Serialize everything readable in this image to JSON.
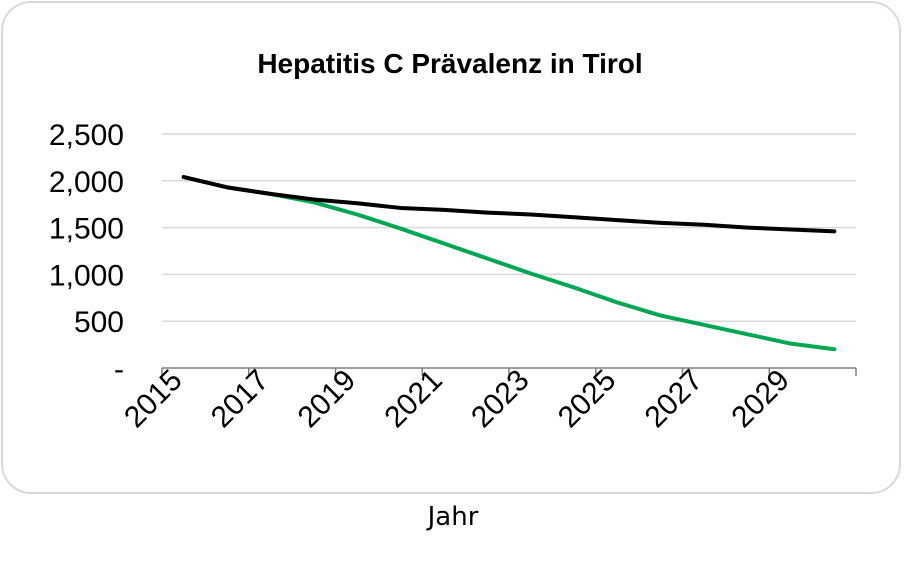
{
  "chart_data": {
    "type": "line",
    "title": "Hepatitis C Prävalenz in Tirol",
    "xlabel": "Jahr",
    "ylabel": "",
    "xlim": [
      2014.5,
      2030.5
    ],
    "ylim": [
      0,
      2500
    ],
    "x_ticks": [
      "2015",
      "2017",
      "2019",
      "2021",
      "2023",
      "2025",
      "2027",
      "2029"
    ],
    "y_ticks": [
      {
        "value": 0,
        "label": "-"
      },
      {
        "value": 500,
        "label": "500"
      },
      {
        "value": 1000,
        "label": "1,000"
      },
      {
        "value": 1500,
        "label": "1,500"
      },
      {
        "value": 2000,
        "label": "2,000"
      },
      {
        "value": 2500,
        "label": "2,500"
      }
    ],
    "grid": true,
    "series": [
      {
        "color": "#00a651",
        "x": [
          2015,
          2016,
          2017,
          2018,
          2019,
          2020,
          2021,
          2022,
          2023,
          2024,
          2025,
          2026,
          2027,
          2028,
          2029,
          2030
        ],
        "values": [
          2040,
          1930,
          1860,
          1770,
          1640,
          1490,
          1330,
          1170,
          1010,
          860,
          700,
          560,
          460,
          360,
          260,
          200
        ]
      },
      {
        "color": "#000000",
        "x": [
          2015,
          2016,
          2017,
          2018,
          2019,
          2020,
          2021,
          2022,
          2023,
          2024,
          2025,
          2026,
          2027,
          2028,
          2029,
          2030
        ],
        "values": [
          2040,
          1930,
          1860,
          1800,
          1760,
          1710,
          1690,
          1660,
          1640,
          1610,
          1580,
          1550,
          1530,
          1500,
          1480,
          1460
        ]
      }
    ]
  }
}
